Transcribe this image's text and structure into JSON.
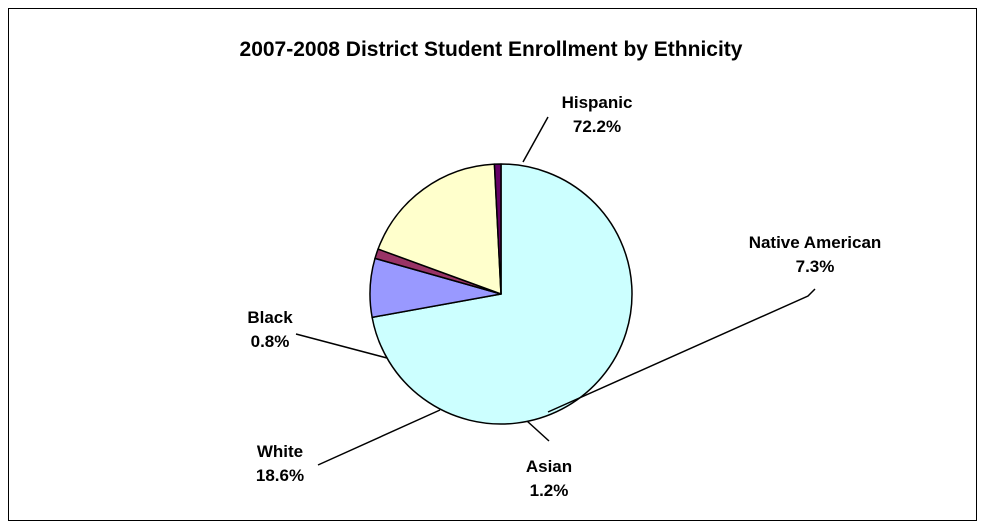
{
  "chart_data": {
    "type": "pie",
    "title": "2007-2008 District Student Enrollment by Ethnicity",
    "slices": [
      {
        "label": "Hispanic",
        "value": 72.2,
        "display": "72.2%",
        "color": "#CCFFFF"
      },
      {
        "label": "Native American",
        "value": 7.3,
        "display": "7.3%",
        "color": "#9999FF"
      },
      {
        "label": "Asian",
        "value": 1.2,
        "display": "1.2%",
        "color": "#993366"
      },
      {
        "label": "White",
        "value": 18.6,
        "display": "18.6%",
        "color": "#FFFFCC"
      },
      {
        "label": "Black",
        "value": 0.8,
        "display": "0.8%",
        "color": "#660066"
      }
    ],
    "legend": "none",
    "outline_color": "#000000"
  }
}
